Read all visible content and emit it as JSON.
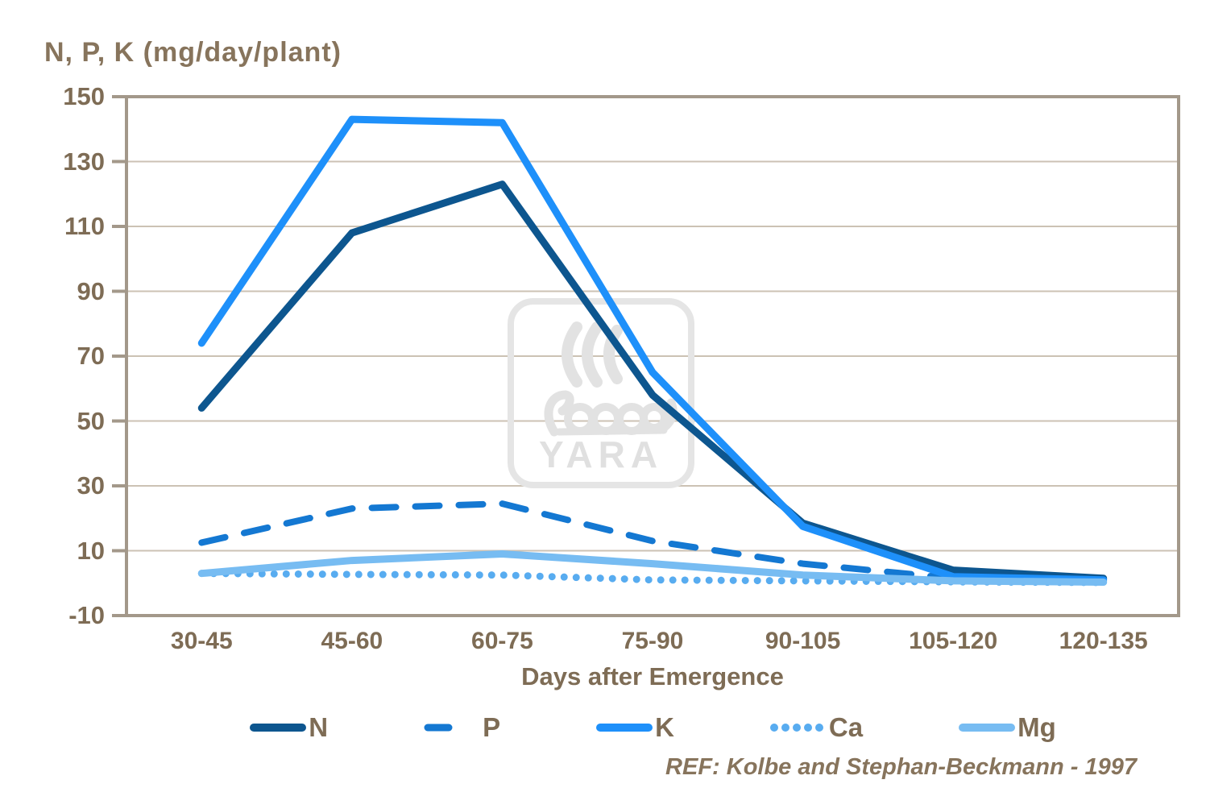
{
  "title": "N, P, K (mg/day/plant)",
  "reference": "REF: Kolbe and Stephan-Beckmann - 1997",
  "watermark": "YARA",
  "chart_data": {
    "type": "line",
    "title": "N, P, K (mg/day/plant)",
    "xlabel": "Days after Emergence",
    "ylabel": "N, P, K (mg/day/plant)",
    "categories": [
      "30-45",
      "45-60",
      "60-75",
      "75-90",
      "90-105",
      "105-120",
      "120-135"
    ],
    "series": [
      {
        "name": "N",
        "color": "#0D568F",
        "width": 9,
        "dash": null,
        "swatch_dash": null,
        "values": [
          54,
          108,
          123,
          58,
          18.5,
          4,
          1.5
        ]
      },
      {
        "name": "P",
        "color": "#1478D2",
        "width": 8,
        "dash": "30 24",
        "swatch_dash": "26 90",
        "values": [
          12.5,
          23,
          24.5,
          13,
          6,
          1.5,
          0.5
        ]
      },
      {
        "name": "K",
        "color": "#1E90FA",
        "width": 9,
        "dash": null,
        "swatch_dash": null,
        "values": [
          74,
          143,
          142,
          65,
          17.5,
          2,
          1
        ]
      },
      {
        "name": "Ca",
        "color": "#58ACF0",
        "width": 9,
        "dash": "0 15",
        "swatch_dash": "0 14",
        "values": [
          3,
          2.7,
          2.5,
          1,
          0.7,
          0.4,
          0.2
        ]
      },
      {
        "name": "Mg",
        "color": "#77BCF2",
        "width": 9,
        "dash": null,
        "swatch_dash": null,
        "values": [
          3,
          7,
          9,
          6,
          2.5,
          0.7,
          0.3
        ]
      }
    ],
    "y_ticks": [
      150,
      130,
      110,
      90,
      70,
      50,
      30,
      10,
      -10
    ],
    "ylim": [
      -10,
      150
    ],
    "grid": true,
    "legend_position": "bottom",
    "axis_color": "#A3988A",
    "grid_color": "#CCC2B4",
    "text_color": "#7E6C55"
  }
}
